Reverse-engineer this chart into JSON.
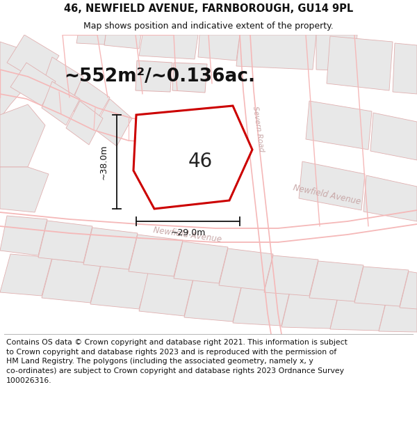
{
  "title_line1": "46, NEWFIELD AVENUE, FARNBOROUGH, GU14 9PL",
  "title_line2": "Map shows position and indicative extent of the property.",
  "area_label": "~552m²/~0.136ac.",
  "property_number": "46",
  "dim_width": "~29.0m",
  "dim_height": "~38.0m",
  "road_label1": "Newfield Avenue",
  "road_label1b": "Newfield Avenue",
  "road_label2": "Severn Road",
  "footer_text": "Contains OS data © Crown copyright and database right 2021. This information is subject\nto Crown copyright and database rights 2023 and is reproduced with the permission of\nHM Land Registry. The polygons (including the associated geometry, namely x, y\nco-ordinates) are subject to Crown copyright and database rights 2023 Ordnance Survey\n100026316.",
  "bg_color": "#ffffff",
  "map_bg_color": "#f9f9f9",
  "street_line_color": "#f5b8b8",
  "block_fill_color": "#e8e8e8",
  "block_edge_color": "#e0b0b0",
  "property_outline_color": "#cc0000",
  "dim_line_color": "#111111",
  "title_fontsize": 10.5,
  "subtitle_fontsize": 9,
  "area_fontsize": 19,
  "number_fontsize": 20,
  "footer_fontsize": 7.8,
  "road_label_fontsize": 8.5,
  "road_label_color": "#c8a8a8"
}
